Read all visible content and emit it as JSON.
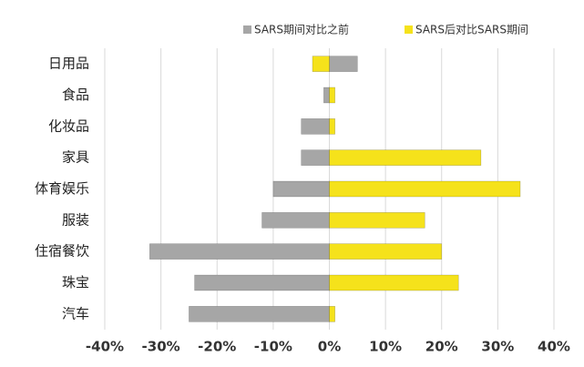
{
  "chart_data": {
    "type": "bar",
    "orientation": "horizontal",
    "categories": [
      "日用品",
      "食品",
      "化妆品",
      "家具",
      "体育娱乐",
      "服装",
      "住宿餐饮",
      "珠宝",
      "汽车"
    ],
    "series": [
      {
        "name": "SARS期间对比之前",
        "color": "#a6a6a6",
        "values": [
          5,
          -1,
          -5,
          -5,
          -10,
          -12,
          -32,
          -24,
          -25
        ]
      },
      {
        "name": "SARS后对比SARS期间",
        "color": "#f5e21b",
        "values": [
          -3,
          1,
          1,
          27,
          34,
          17,
          20,
          23,
          1
        ]
      }
    ],
    "xlim": [
      -40,
      40
    ],
    "xticks": [
      {
        "value": -40,
        "label": "-40%"
      },
      {
        "value": -30,
        "label": "-30%"
      },
      {
        "value": -20,
        "label": "-20%"
      },
      {
        "value": -10,
        "label": "-10%"
      },
      {
        "value": 0,
        "label": "0%"
      },
      {
        "value": 10,
        "label": "10%"
      },
      {
        "value": 20,
        "label": "20%"
      },
      {
        "value": 30,
        "label": "30%"
      },
      {
        "value": 40,
        "label": "40%"
      }
    ],
    "grid": true,
    "legend": "top-right"
  }
}
